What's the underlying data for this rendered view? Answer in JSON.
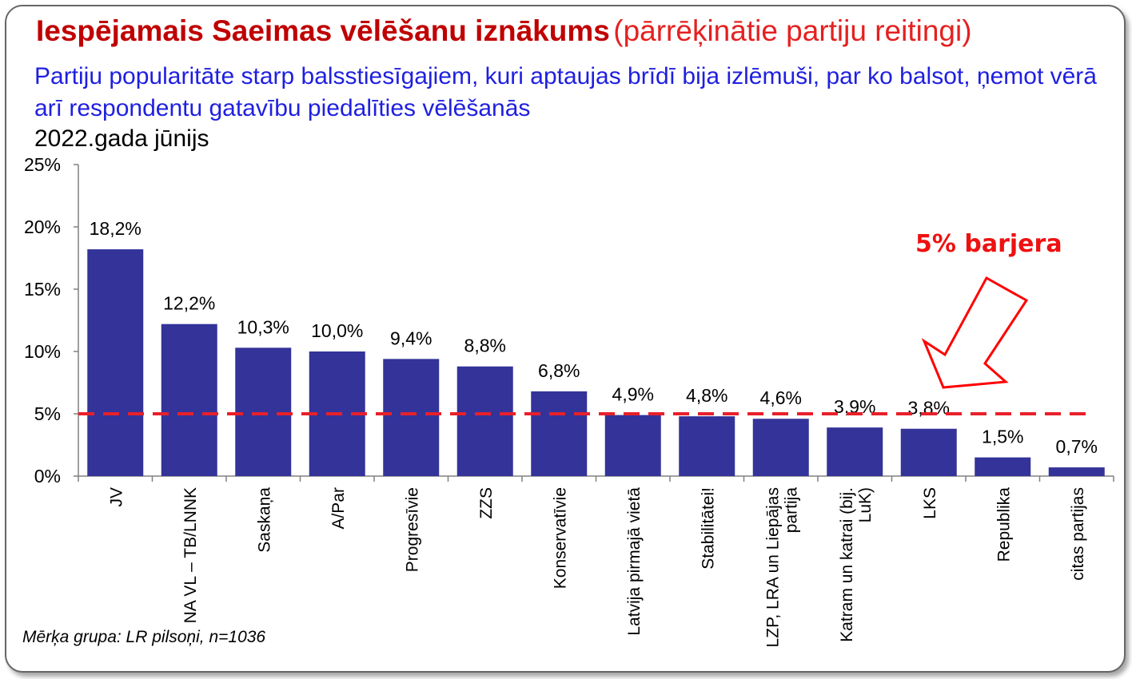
{
  "title": "Iespējamais Saeimas vēlēšanu iznākums",
  "title_suffix": "(pārrēķinātie partiju reitingi)",
  "subtitle": "Partiju popularitāte starp balsstiesīgajiem, kuri aptaujas brīdī bija izlēmuši, par ko balsot, ņemot vērā arī respondentu gatavību piedalīties vēlēšanās",
  "date": "2022.gada jūnijs",
  "footnote": "Mērķa grupa: LR pilsoņi, n=1036",
  "threshold_label": "5% barjera",
  "colors": {
    "bar": "#333399",
    "threshold": "#e8202a",
    "arrow": "#ff0000"
  },
  "chart_data": {
    "type": "bar",
    "categories": [
      "JV",
      "NA VL – TB/LNNK",
      "Saskaņa",
      "A/Par",
      "Progresīvie",
      "ZZS",
      "Konservatīvie",
      "Latvija pirmajā vietā",
      "Stabilitātei!",
      "LZP, LRA un Liepājas partija",
      "Katram un katrai (bij. LuK)",
      "LKS",
      "Republika",
      "citas partijas"
    ],
    "values": [
      18.2,
      12.2,
      10.3,
      10.0,
      9.4,
      8.8,
      6.8,
      4.9,
      4.8,
      4.6,
      3.9,
      3.8,
      1.5,
      0.7
    ],
    "data_labels": [
      "18,2%",
      "12,2%",
      "10,3%",
      "10,0%",
      "9,4%",
      "8,8%",
      "6,8%",
      "4,9%",
      "4,8%",
      "4,6%",
      "3,9%",
      "3,8%",
      "1,5%",
      "0,7%"
    ],
    "ylim": [
      0,
      25
    ],
    "yticks": [
      "0%",
      "5%",
      "10%",
      "15%",
      "20%",
      "25%"
    ],
    "threshold": 5,
    "grid": false,
    "legend": "none"
  }
}
